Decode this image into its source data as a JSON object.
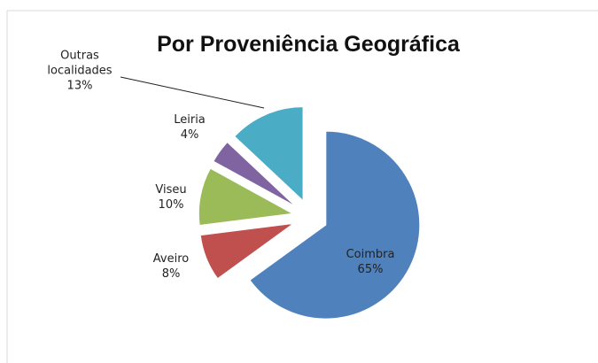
{
  "chart_data": {
    "type": "pie",
    "title": "Por Proveniência Geográfica",
    "categories": [
      "Coimbra",
      "Aveiro",
      "Viseu",
      "Leiria",
      "Outras localidades"
    ],
    "values": [
      65,
      8,
      10,
      4,
      13
    ],
    "value_labels": [
      "65%",
      "8%",
      "10%",
      "4%",
      "13%"
    ],
    "colors": [
      "#4f81bd",
      "#c0504d",
      "#9bbb59",
      "#8064a2",
      "#4bacc6"
    ]
  }
}
